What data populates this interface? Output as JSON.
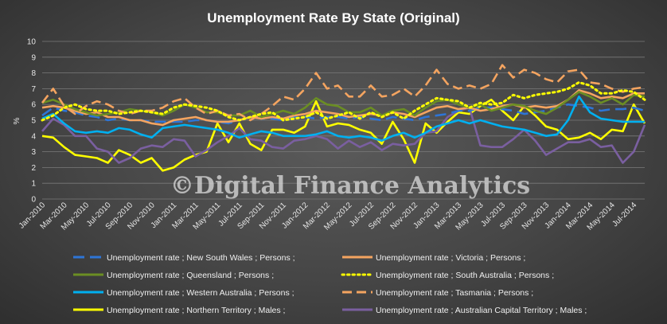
{
  "chart_data": {
    "type": "line",
    "title": "Unemployment  Rate  By  State  (Original)",
    "ylabel": "%",
    "xlabel": "",
    "ylim": [
      0,
      10
    ],
    "yticks": [
      0,
      1,
      2,
      3,
      4,
      5,
      6,
      7,
      8,
      9,
      10
    ],
    "grid": true,
    "legend_position": "bottom",
    "watermark": "©Digital Finance Analytics",
    "x": [
      "Jan-2010",
      "Feb-2010",
      "Mar-2010",
      "Apr-2010",
      "May-2010",
      "Jun-2010",
      "Jul-2010",
      "Aug-2010",
      "Sep-2010",
      "Oct-2010",
      "Nov-2010",
      "Dec-2010",
      "Jan-2011",
      "Feb-2011",
      "Mar-2011",
      "Apr-2011",
      "May-2011",
      "Jun-2011",
      "Jul-2011",
      "Aug-2011",
      "Sep-2011",
      "Oct-2011",
      "Nov-2011",
      "Dec-2011",
      "Jan-2012",
      "Feb-2012",
      "Mar-2012",
      "Apr-2012",
      "May-2012",
      "Jun-2012",
      "Jul-2012",
      "Aug-2012",
      "Sep-2012",
      "Oct-2012",
      "Nov-2012",
      "Dec-2012",
      "Jan-2013",
      "Feb-2013",
      "Mar-2013",
      "Apr-2013",
      "May-2013",
      "Jun-2013",
      "Jul-2013",
      "Aug-2013",
      "Sep-2013",
      "Oct-2013",
      "Nov-2013",
      "Dec-2013",
      "Jan-2014",
      "Feb-2014",
      "Mar-2014",
      "Apr-2014",
      "May-2014",
      "Jun-2014",
      "Jul-2014",
      "Aug-2014"
    ],
    "xtick_labels": [
      "Jan-2010",
      "Mar-2010",
      "May-2010",
      "Jul-2010",
      "Sep-2010",
      "Nov-2010",
      "Jan-2011",
      "Mar-2011",
      "May-2011",
      "Jul-2011",
      "Sep-2011",
      "Nov-2011",
      "Jan-2012",
      "Mar-2012",
      "May-2012",
      "Jul-2012",
      "Sep-2012",
      "Nov-2012",
      "Jan-2013",
      "Mar-2013",
      "May-2013",
      "Jul-2013",
      "Sep-2013",
      "Nov-2013",
      "Jan-2014",
      "Mar-2014",
      "May-2014",
      "Jul-2014"
    ],
    "series": [
      {
        "name": "Unemployment rate ;  New South Wales ;  Persons ;",
        "color": "#2e75d6",
        "style": "dash-long",
        "values": [
          5.3,
          5.8,
          5.6,
          5.5,
          5.3,
          5.2,
          5.0,
          5.1,
          5.0,
          5.0,
          4.9,
          4.9,
          4.9,
          4.9,
          5.0,
          5.0,
          4.9,
          4.8,
          5.0,
          5.2,
          5.1,
          5.1,
          5.0,
          5.2,
          5.2,
          5.1,
          5.2,
          5.2,
          5.1,
          5.2,
          5.1,
          5.0,
          5.2,
          5.1,
          5.0,
          5.2,
          5.3,
          5.4,
          5.6,
          5.6,
          5.8,
          5.8,
          5.7,
          5.6,
          5.4,
          5.5,
          5.6,
          5.8,
          6.0,
          5.9,
          5.8,
          5.6,
          5.7,
          5.7,
          5.8,
          5.6
        ]
      },
      {
        "name": "Unemployment rate ;  Victoria ;  Persons ;",
        "color": "#f4a460",
        "style": "solid",
        "values": [
          5.8,
          5.9,
          5.8,
          5.6,
          5.4,
          5.5,
          5.2,
          5.2,
          5.0,
          5.0,
          4.8,
          4.7,
          5.0,
          5.1,
          5.2,
          5.0,
          4.9,
          4.9,
          5.0,
          5.2,
          5.1,
          5.2,
          5.1,
          5.3,
          5.4,
          5.6,
          5.5,
          5.4,
          5.2,
          5.3,
          5.4,
          5.3,
          5.5,
          5.4,
          5.2,
          5.5,
          5.8,
          5.9,
          5.7,
          5.8,
          5.6,
          5.7,
          5.9,
          6.0,
          5.8,
          5.9,
          5.8,
          5.9,
          6.3,
          6.9,
          6.7,
          6.4,
          6.5,
          6.4,
          6.7,
          6.7
        ]
      },
      {
        "name": "Unemployment rate ;  Queensland ;  Persons ;",
        "color": "#6b8e23",
        "style": "solid",
        "values": [
          6.1,
          6.3,
          6.0,
          5.7,
          5.5,
          5.3,
          5.4,
          5.5,
          5.7,
          5.6,
          5.5,
          5.3,
          5.6,
          6.0,
          5.8,
          5.5,
          5.5,
          5.3,
          5.3,
          5.6,
          5.2,
          5.4,
          5.6,
          5.4,
          5.8,
          6.4,
          6.0,
          5.9,
          5.5,
          5.5,
          5.8,
          5.3,
          5.6,
          5.7,
          5.3,
          5.8,
          6.2,
          6.3,
          6.0,
          5.8,
          6.0,
          5.6,
          5.8,
          6.0,
          5.9,
          5.6,
          5.4,
          5.8,
          6.3,
          6.8,
          6.5,
          6.1,
          6.4,
          6.0,
          6.6,
          6.5
        ]
      },
      {
        "name": "Unemployment rate ;  South Australia ;  Persons ;",
        "color": "#ffff00",
        "style": "dot",
        "values": [
          5.0,
          5.3,
          5.8,
          6.0,
          5.7,
          5.6,
          5.6,
          5.4,
          5.5,
          5.6,
          5.5,
          5.4,
          5.8,
          6.0,
          5.9,
          5.8,
          5.6,
          5.2,
          5.0,
          5.2,
          5.4,
          5.5,
          5.0,
          5.1,
          5.2,
          5.5,
          5.1,
          5.3,
          5.5,
          5.1,
          5.5,
          5.2,
          5.5,
          5.1,
          5.6,
          6.0,
          6.4,
          6.3,
          6.2,
          5.8,
          6.1,
          6.0,
          6.1,
          6.6,
          6.4,
          6.6,
          6.7,
          6.8,
          7.0,
          7.4,
          7.2,
          6.7,
          6.7,
          6.9,
          6.8,
          6.3
        ]
      },
      {
        "name": "Unemployment rate ;  Western Australia ;  Persons ;",
        "color": "#00b0f0",
        "style": "solid",
        "values": [
          5.1,
          5.4,
          4.8,
          4.3,
          4.2,
          4.3,
          4.2,
          4.5,
          4.4,
          4.1,
          3.9,
          4.5,
          4.6,
          4.7,
          4.6,
          4.5,
          4.4,
          4.2,
          3.9,
          4.1,
          4.3,
          4.2,
          4.0,
          4.0,
          4.0,
          4.1,
          4.3,
          4.0,
          3.9,
          4.0,
          3.9,
          3.7,
          4.0,
          4.2,
          3.9,
          4.2,
          4.6,
          4.8,
          5.0,
          4.8,
          5.0,
          4.8,
          4.6,
          4.5,
          4.4,
          4.2,
          4.0,
          4.1,
          5.0,
          6.5,
          5.5,
          5.1,
          5.0,
          4.9,
          4.9,
          4.9
        ]
      },
      {
        "name": "Unemployment rate ;  Tasmania ;  Persons ;",
        "color": "#f4a460",
        "style": "dash",
        "values": [
          6.1,
          7.0,
          5.9,
          5.4,
          5.9,
          6.2,
          6.0,
          5.6,
          5.4,
          5.6,
          5.6,
          5.8,
          6.2,
          6.4,
          5.8,
          5.4,
          5.6,
          5.3,
          5.4,
          5.0,
          5.4,
          5.9,
          6.5,
          6.3,
          7.0,
          8.0,
          7.0,
          7.2,
          6.5,
          6.5,
          7.2,
          6.5,
          6.6,
          7.0,
          6.5,
          7.2,
          8.2,
          7.3,
          7.0,
          7.2,
          7.0,
          7.3,
          8.5,
          7.7,
          8.2,
          8.0,
          7.6,
          7.4,
          8.1,
          8.2,
          7.4,
          7.3,
          7.0,
          6.8,
          7.0,
          7.1
        ]
      },
      {
        "name": "Unemployment rate ;  Northern Territory ;  Males ;",
        "color": "#ffff00",
        "style": "solid",
        "values": [
          4.0,
          3.9,
          3.3,
          2.8,
          2.7,
          2.6,
          2.3,
          3.1,
          2.8,
          2.3,
          2.6,
          1.8,
          2.0,
          2.5,
          2.8,
          3.0,
          4.8,
          3.6,
          4.8,
          3.5,
          3.1,
          4.4,
          4.4,
          4.2,
          4.6,
          6.2,
          4.6,
          4.8,
          4.7,
          4.4,
          4.2,
          3.5,
          4.9,
          3.8,
          2.3,
          4.8,
          4.2,
          4.9,
          5.5,
          5.4,
          5.9,
          6.3,
          5.6,
          5.0,
          5.9,
          5.3,
          4.6,
          4.4,
          3.8,
          3.9,
          4.2,
          3.8,
          4.4,
          4.3,
          6.0,
          4.8
        ]
      },
      {
        "name": "Unemployment rate ;  Australian Capital Territory ;  Males ;",
        "color": "#7a5fa0",
        "style": "solid",
        "values": [
          4.3,
          5.1,
          4.7,
          4.0,
          4.0,
          3.2,
          3.0,
          2.3,
          2.6,
          3.2,
          3.4,
          3.3,
          3.8,
          3.7,
          2.7,
          3.1,
          3.6,
          4.0,
          4.5,
          3.8,
          3.7,
          3.3,
          3.2,
          3.7,
          3.8,
          4.0,
          3.8,
          3.2,
          3.7,
          3.3,
          3.6,
          3.1,
          3.5,
          3.4,
          3.5,
          4.2,
          4.3,
          5.2,
          5.6,
          5.8,
          3.4,
          3.3,
          3.3,
          3.8,
          4.4,
          3.7,
          2.8,
          3.2,
          3.6,
          3.6,
          3.8,
          3.3,
          3.4,
          2.3,
          3.0,
          4.7
        ]
      }
    ]
  }
}
